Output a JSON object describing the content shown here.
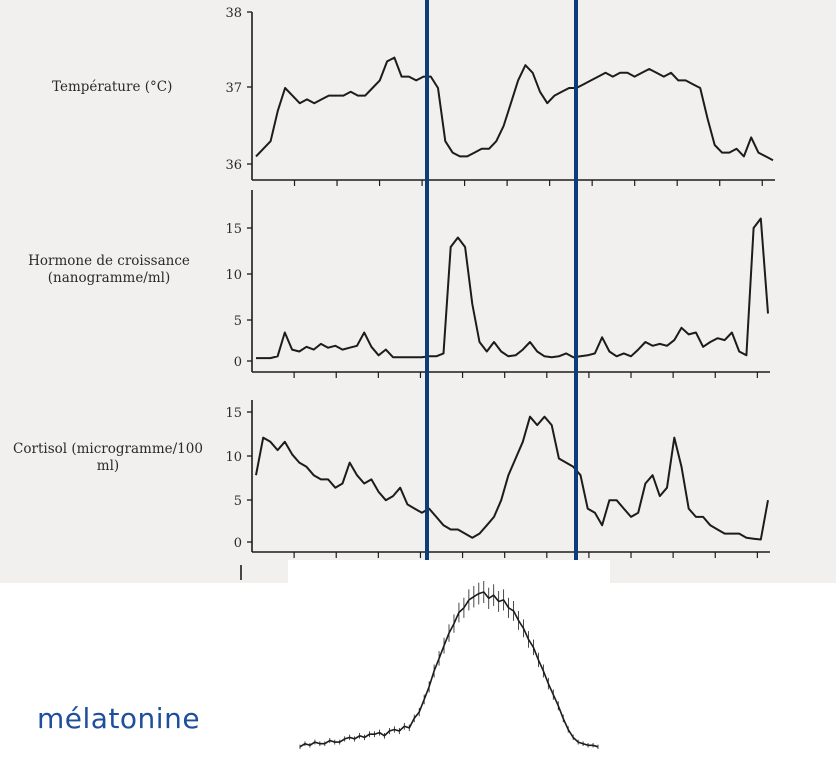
{
  "colors": {
    "scan_background": "#f1f0ee",
    "curve": "#1c1c1c",
    "vertical_markers": "#0d3c78",
    "melatonin_label": "#1f4f9c"
  },
  "melatonin_label": "mélatonine",
  "chart_data": [
    {
      "type": "line",
      "ylabel": "Température (°C)",
      "yticks": [
        "36",
        "37",
        "38"
      ],
      "ylim": [
        36,
        38
      ],
      "grid": false,
      "x": [
        0,
        1,
        2,
        3,
        4,
        5,
        6,
        7,
        8,
        9,
        10,
        11,
        12,
        13,
        14,
        15,
        16,
        17,
        18,
        19,
        20,
        21,
        22,
        23,
        24,
        25,
        26,
        27,
        28,
        29,
        30,
        31,
        32,
        33,
        34,
        35,
        36,
        37,
        38,
        39,
        40,
        41,
        42,
        43,
        44,
        45,
        46,
        47,
        48,
        49,
        50,
        51,
        52,
        53,
        54,
        55,
        56,
        57,
        58,
        59,
        60,
        61,
        62,
        63,
        64,
        65,
        66,
        67,
        68,
        69,
        70,
        71
      ],
      "y": [
        36.1,
        36.2,
        36.3,
        36.7,
        37.0,
        36.9,
        36.8,
        36.85,
        36.8,
        36.85,
        36.9,
        36.9,
        36.9,
        36.95,
        36.9,
        36.9,
        37.0,
        37.1,
        37.35,
        37.4,
        37.15,
        37.15,
        37.1,
        37.15,
        37.15,
        37.0,
        36.3,
        36.15,
        36.1,
        36.1,
        36.15,
        36.2,
        36.2,
        36.3,
        36.5,
        36.8,
        37.1,
        37.3,
        37.2,
        36.95,
        36.8,
        36.9,
        36.95,
        37.0,
        37.0,
        37.05,
        37.1,
        37.15,
        37.2,
        37.15,
        37.2,
        37.2,
        37.15,
        37.2,
        37.25,
        37.2,
        37.15,
        37.2,
        37.1,
        37.1,
        37.05,
        37.0,
        36.6,
        36.25,
        36.15,
        36.15,
        36.2,
        36.1,
        36.35,
        36.15,
        36.1,
        36.05
      ]
    },
    {
      "type": "line",
      "ylabel": "Hormone de croissance (nanogramme/ml)",
      "yticks": [
        "0",
        "5",
        "10",
        "15"
      ],
      "ylim": [
        0,
        18
      ],
      "grid": false,
      "x": [
        0,
        1,
        2,
        3,
        4,
        5,
        6,
        7,
        8,
        9,
        10,
        11,
        12,
        13,
        14,
        15,
        16,
        17,
        18,
        19,
        20,
        21,
        22,
        23,
        24,
        25,
        26,
        27,
        28,
        29,
        30,
        31,
        32,
        33,
        34,
        35,
        36,
        37,
        38,
        39,
        40,
        41,
        42,
        43,
        44,
        45,
        46,
        47,
        48,
        49,
        50,
        51,
        52,
        53,
        54,
        55,
        56,
        57,
        58,
        59,
        60,
        61,
        62,
        63,
        64,
        65,
        66,
        67,
        68,
        69,
        70,
        71
      ],
      "y": [
        0.3,
        0.3,
        0.3,
        0.5,
        3,
        1.2,
        1,
        1.5,
        1.2,
        1.8,
        1.4,
        1.6,
        1.2,
        1.4,
        1.6,
        3,
        1.5,
        0.6,
        1.2,
        0.4,
        0.4,
        0.4,
        0.4,
        0.4,
        0.5,
        0.5,
        0.8,
        12,
        13,
        12,
        6,
        2,
        1,
        2,
        1,
        0.5,
        0.6,
        1.2,
        2,
        1,
        0.5,
        0.4,
        0.5,
        0.8,
        0.4,
        0.5,
        0.6,
        0.8,
        2.5,
        1,
        0.5,
        0.8,
        0.5,
        1.2,
        2,
        1.6,
        1.8,
        1.6,
        2.2,
        3.5,
        2.8,
        3,
        1.5,
        2,
        2.4,
        2.2,
        3,
        1,
        0.6,
        14,
        15,
        5
      ]
    },
    {
      "type": "line",
      "ylabel": "Cortisol (microgramme/100 ml)",
      "yticks": [
        "0",
        "5",
        "10",
        "15"
      ],
      "ylim": [
        0,
        17
      ],
      "grid": false,
      "x": [
        0,
        1,
        2,
        3,
        4,
        5,
        6,
        7,
        8,
        9,
        10,
        11,
        12,
        13,
        14,
        15,
        16,
        17,
        18,
        19,
        20,
        21,
        22,
        23,
        24,
        25,
        26,
        27,
        28,
        29,
        30,
        31,
        32,
        33,
        34,
        35,
        36,
        37,
        38,
        39,
        40,
        41,
        42,
        43,
        44,
        45,
        46,
        47,
        48,
        49,
        50,
        51,
        52,
        53,
        54,
        55,
        56,
        57,
        58,
        59,
        60,
        61,
        62,
        63,
        64,
        65,
        66,
        67,
        68,
        69,
        70,
        71
      ],
      "y": [
        8,
        12.5,
        12,
        11,
        12,
        10.5,
        9.5,
        9,
        8,
        7.5,
        7.5,
        6.5,
        7,
        9.5,
        8,
        7,
        7.5,
        6,
        5,
        5.5,
        6.5,
        4.5,
        4,
        3.5,
        4,
        3,
        2,
        1.5,
        1.5,
        1,
        0.5,
        1,
        2,
        3,
        5,
        8,
        10,
        12,
        15,
        14,
        15,
        14,
        10,
        9.5,
        9,
        8,
        4,
        3.5,
        2,
        5,
        5,
        4,
        3,
        3.5,
        7,
        8,
        5.5,
        6.5,
        12.5,
        9,
        4,
        3,
        3,
        2,
        1.5,
        1,
        1,
        1,
        0.5,
        0.4,
        0.3,
        5
      ]
    },
    {
      "type": "line",
      "ylabel": "mélatonine",
      "grid": false,
      "x": [
        0,
        1,
        2,
        3,
        4,
        5,
        6,
        7,
        8,
        9,
        10,
        11,
        12,
        13,
        14,
        15,
        16,
        17,
        18,
        19,
        20,
        21,
        22,
        23,
        24,
        25,
        26,
        27,
        28,
        29,
        30,
        31,
        32,
        33,
        34,
        35,
        36,
        37,
        38,
        39,
        40,
        41,
        42,
        43,
        44,
        45,
        46,
        47,
        48,
        49,
        50,
        51,
        52,
        53,
        54,
        55,
        56,
        57,
        58,
        59,
        60
      ],
      "y": [
        0.02,
        0.04,
        0.03,
        0.05,
        0.04,
        0.04,
        0.06,
        0.05,
        0.05,
        0.07,
        0.08,
        0.07,
        0.09,
        0.08,
        0.1,
        0.1,
        0.11,
        0.09,
        0.12,
        0.13,
        0.12,
        0.15,
        0.14,
        0.2,
        0.24,
        0.32,
        0.4,
        0.5,
        0.58,
        0.66,
        0.74,
        0.8,
        0.87,
        0.9,
        0.95,
        0.97,
        0.99,
        1.0,
        0.96,
        0.98,
        0.94,
        0.95,
        0.9,
        0.88,
        0.82,
        0.77,
        0.7,
        0.65,
        0.57,
        0.5,
        0.42,
        0.35,
        0.28,
        0.2,
        0.13,
        0.08,
        0.05,
        0.04,
        0.03,
        0.03,
        0.02
      ]
    }
  ]
}
